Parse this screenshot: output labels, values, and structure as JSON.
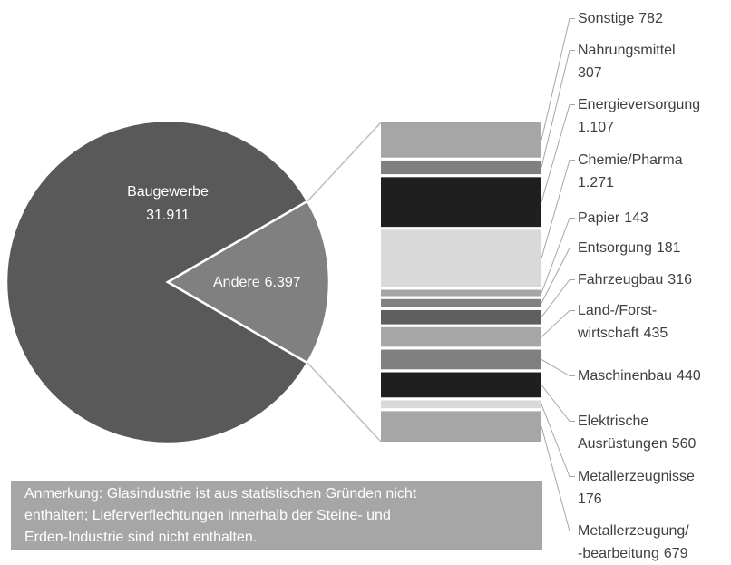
{
  "chart_data": {
    "type": "pie-of-bar",
    "pie": {
      "categories": [
        "Baugewerbe",
        "Andere"
      ],
      "values": [
        31911,
        6397
      ],
      "value_labels": [
        "31.911",
        "6.397"
      ],
      "colors": [
        "#595959",
        "#808080"
      ]
    },
    "bar": {
      "categories": [
        "Sonstige",
        "Nahrungsmittel",
        "Energieversorgung",
        "Chemie/Pharma",
        "Papier",
        "Entsorgung",
        "Fahrzeugbau",
        "Land-/Forst-\nwirtschaft",
        "Maschinenbau",
        "Elektrische\nAusrüstungen",
        "Metallerzeugnisse",
        "Metallerzeugung/\n-bearbeitung"
      ],
      "values": [
        782,
        307,
        1107,
        1271,
        143,
        181,
        316,
        435,
        440,
        560,
        176,
        679
      ],
      "value_labels": [
        "782",
        "307",
        "1.107",
        "1.271",
        "143",
        "181",
        "316",
        "435",
        "440",
        "560",
        "176",
        "679"
      ],
      "colors": [
        "#a6a6a6",
        "#808080",
        "#1f1f1f",
        "#d9d9d9",
        "#a6a6a6",
        "#808080",
        "#5f5f5f",
        "#a6a6a6",
        "#808080",
        "#1f1f1f",
        "#d9d9d9",
        "#a6a6a6"
      ]
    },
    "note": [
      "Anmerkung: Glasindustrie ist aus statistischen Gründen nicht",
      "enthalten; Lieferverflechtungen innerhalb der Steine- und",
      "Erden-Industrie sind nicht enthalten."
    ]
  }
}
